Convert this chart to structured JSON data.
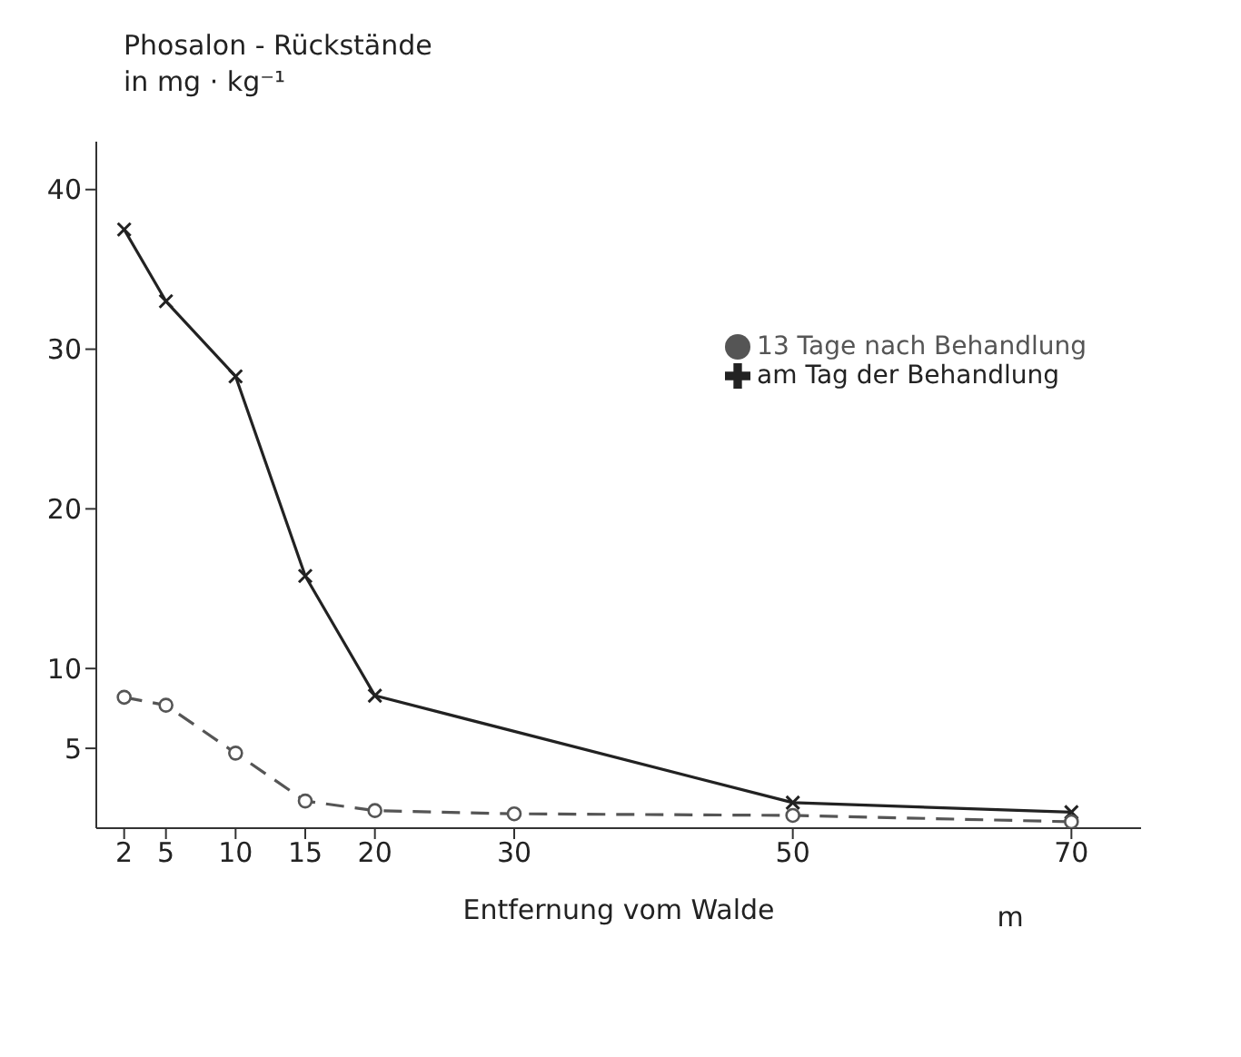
{
  "chart_data": {
    "type": "line",
    "ylabel": "Phosalon - Rückstände\nin mg · kg⁻¹",
    "xlabel": "Entfernung vom Walde",
    "annotations": [
      "m"
    ],
    "x": [
      2,
      5,
      10,
      15,
      20,
      50,
      70
    ],
    "series": [
      {
        "name": "am Tag der Behandlung",
        "color": "#222222",
        "marker": "cross",
        "line_style": "solid",
        "values": [
          37.5,
          33,
          28.3,
          15.8,
          8.3,
          1.6,
          1.0
        ]
      },
      {
        "name": "13 Tage nach Behandlung",
        "color": "#555555",
        "marker": "circle",
        "line_style": "dashed",
        "x": [
          2,
          5,
          10,
          15,
          20,
          30,
          50,
          70
        ],
        "values": [
          8.2,
          7.7,
          4.7,
          1.7,
          1.1,
          0.9,
          0.8,
          0.4
        ]
      }
    ],
    "xlim": [
      0,
      75
    ],
    "xticks": [
      2,
      5,
      10,
      15,
      20,
      30,
      50,
      70
    ],
    "ylim": [
      0,
      43
    ],
    "yticks": [
      5,
      10,
      20,
      30,
      40
    ],
    "grid": false,
    "legend": "top right"
  }
}
